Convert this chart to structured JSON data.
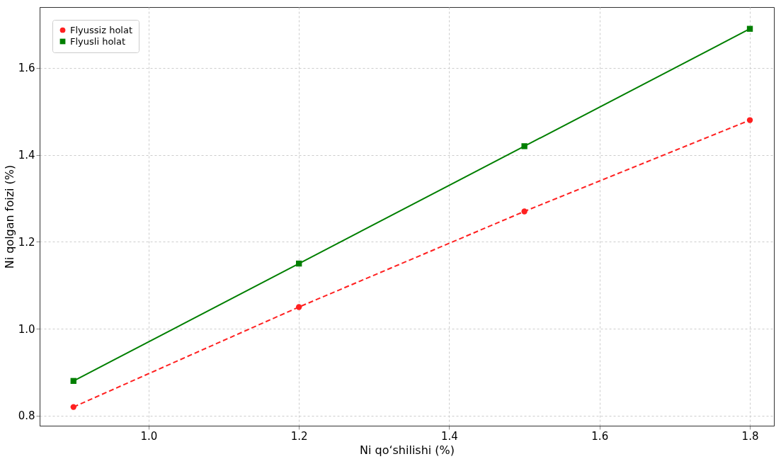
{
  "chart_data": {
    "type": "line",
    "xlabel": "Ni qo‘shilishi (%)",
    "ylabel": "Ni qolgan foizi (%)",
    "x": [
      0.9,
      1.2,
      1.5,
      1.8
    ],
    "series": [
      {
        "name": "Flyussiz holat",
        "color": "#ff2020",
        "values": [
          0.82,
          1.05,
          1.27,
          1.48
        ],
        "marker": "circle",
        "line_style": "dashed"
      },
      {
        "name": "Flyusli holat",
        "color": "#007f00",
        "values": [
          0.88,
          1.15,
          1.42,
          1.69
        ],
        "marker": "square",
        "line_style": "solid"
      }
    ],
    "xlim": [
      0.855,
      1.832
    ],
    "ylim": [
      0.777,
      1.74
    ],
    "xticks": [
      {
        "value": 1.0,
        "label": "1.0"
      },
      1.2,
      1.4,
      1.6,
      1.8
    ],
    "yticks": [
      0.8,
      {
        "value": 1.0,
        "label": "1.0"
      },
      1.2,
      1.4,
      1.6
    ],
    "grid": true,
    "legend": "top left"
  }
}
